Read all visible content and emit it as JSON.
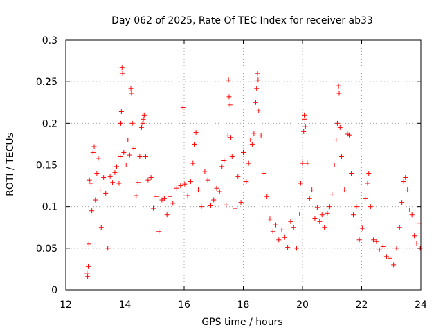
{
  "chart_data": {
    "type": "scatter",
    "title": "Day 062 of 2025, Rate Of TEC Index for receiver ab33",
    "xlabel": "GPS time / hours",
    "ylabel": "ROTI / TECUs",
    "xlim": [
      12,
      24
    ],
    "ylim": [
      0,
      0.3
    ],
    "x_ticks": [
      12,
      14,
      16,
      18,
      20,
      22,
      24
    ],
    "y_ticks": [
      0,
      0.05,
      0.1,
      0.15,
      0.2,
      0.25,
      0.3
    ],
    "x_tick_labels": [
      "12",
      "14",
      "16",
      "18",
      "20",
      "22",
      "24"
    ],
    "y_tick_labels": [
      "0",
      "0.05",
      "0.1",
      "0.15",
      "0.2",
      "0.25",
      "0.3"
    ],
    "grid": true,
    "marker": "plus",
    "marker_color": "#ff0000",
    "grid_color": "#a0a0a0",
    "series": [
      {
        "name": "ROTI",
        "points": [
          [
            12.72,
            0.02
          ],
          [
            12.74,
            0.016
          ],
          [
            12.76,
            0.028
          ],
          [
            12.78,
            0.055
          ],
          [
            12.8,
            0.132
          ],
          [
            12.85,
            0.128
          ],
          [
            12.88,
            0.095
          ],
          [
            12.92,
            0.165
          ],
          [
            12.96,
            0.172
          ],
          [
            13.0,
            0.108
          ],
          [
            13.05,
            0.14
          ],
          [
            13.1,
            0.158
          ],
          [
            13.16,
            0.12
          ],
          [
            13.2,
            0.075
          ],
          [
            13.28,
            0.135
          ],
          [
            13.35,
            0.116
          ],
          [
            13.42,
            0.05
          ],
          [
            13.5,
            0.136
          ],
          [
            13.58,
            0.129
          ],
          [
            13.66,
            0.141
          ],
          [
            13.72,
            0.148
          ],
          [
            13.8,
            0.128
          ],
          [
            13.84,
            0.16
          ],
          [
            13.86,
            0.2
          ],
          [
            13.88,
            0.214
          ],
          [
            13.9,
            0.267
          ],
          [
            13.92,
            0.26
          ],
          [
            13.96,
            0.165
          ],
          [
            14.04,
            0.15
          ],
          [
            14.1,
            0.18
          ],
          [
            14.16,
            0.162
          ],
          [
            14.2,
            0.242
          ],
          [
            14.22,
            0.236
          ],
          [
            14.25,
            0.2
          ],
          [
            14.3,
            0.17
          ],
          [
            14.38,
            0.113
          ],
          [
            14.44,
            0.129
          ],
          [
            14.5,
            0.16
          ],
          [
            14.56,
            0.195
          ],
          [
            14.6,
            0.2
          ],
          [
            14.62,
            0.205
          ],
          [
            14.65,
            0.21
          ],
          [
            14.7,
            0.16
          ],
          [
            14.78,
            0.132
          ],
          [
            14.88,
            0.135
          ],
          [
            14.96,
            0.098
          ],
          [
            15.05,
            0.112
          ],
          [
            15.15,
            0.07
          ],
          [
            15.25,
            0.108
          ],
          [
            15.33,
            0.11
          ],
          [
            15.42,
            0.09
          ],
          [
            15.52,
            0.112
          ],
          [
            15.62,
            0.104
          ],
          [
            15.75,
            0.122
          ],
          [
            15.88,
            0.125
          ],
          [
            15.96,
            0.219
          ],
          [
            16.02,
            0.127
          ],
          [
            16.12,
            0.113
          ],
          [
            16.22,
            0.13
          ],
          [
            16.3,
            0.152
          ],
          [
            16.34,
            0.175
          ],
          [
            16.4,
            0.189
          ],
          [
            16.48,
            0.12
          ],
          [
            16.58,
            0.1
          ],
          [
            16.7,
            0.142
          ],
          [
            16.8,
            0.132
          ],
          [
            16.9,
            0.101
          ],
          [
            17.0,
            0.108
          ],
          [
            17.1,
            0.122
          ],
          [
            17.2,
            0.118
          ],
          [
            17.28,
            0.148
          ],
          [
            17.35,
            0.155
          ],
          [
            17.42,
            0.102
          ],
          [
            17.48,
            0.185
          ],
          [
            17.5,
            0.252
          ],
          [
            17.52,
            0.232
          ],
          [
            17.55,
            0.222
          ],
          [
            17.58,
            0.183
          ],
          [
            17.62,
            0.16
          ],
          [
            17.72,
            0.098
          ],
          [
            17.82,
            0.136
          ],
          [
            17.92,
            0.105
          ],
          [
            18.0,
            0.165
          ],
          [
            18.1,
            0.13
          ],
          [
            18.18,
            0.152
          ],
          [
            18.24,
            0.18
          ],
          [
            18.3,
            0.175
          ],
          [
            18.36,
            0.188
          ],
          [
            18.42,
            0.225
          ],
          [
            18.45,
            0.242
          ],
          [
            18.48,
            0.26
          ],
          [
            18.5,
            0.252
          ],
          [
            18.52,
            0.215
          ],
          [
            18.6,
            0.185
          ],
          [
            18.7,
            0.14
          ],
          [
            18.8,
            0.112
          ],
          [
            18.9,
            0.085
          ],
          [
            19.0,
            0.07
          ],
          [
            19.1,
            0.078
          ],
          [
            19.2,
            0.06
          ],
          [
            19.3,
            0.072
          ],
          [
            19.4,
            0.063
          ],
          [
            19.5,
            0.051
          ],
          [
            19.6,
            0.082
          ],
          [
            19.7,
            0.075
          ],
          [
            19.8,
            0.05
          ],
          [
            19.9,
            0.091
          ],
          [
            19.94,
            0.128
          ],
          [
            20.0,
            0.152
          ],
          [
            20.04,
            0.19
          ],
          [
            20.06,
            0.21
          ],
          [
            20.08,
            0.205
          ],
          [
            20.1,
            0.196
          ],
          [
            20.16,
            0.152
          ],
          [
            20.24,
            0.11
          ],
          [
            20.32,
            0.12
          ],
          [
            20.42,
            0.086
          ],
          [
            20.5,
            0.099
          ],
          [
            20.58,
            0.082
          ],
          [
            20.66,
            0.09
          ],
          [
            20.74,
            0.075
          ],
          [
            20.84,
            0.092
          ],
          [
            20.92,
            0.1
          ],
          [
            21.0,
            0.115
          ],
          [
            21.08,
            0.15
          ],
          [
            21.14,
            0.18
          ],
          [
            21.18,
            0.2
          ],
          [
            21.22,
            0.245
          ],
          [
            21.24,
            0.236
          ],
          [
            21.27,
            0.195
          ],
          [
            21.32,
            0.16
          ],
          [
            21.42,
            0.12
          ],
          [
            21.52,
            0.187
          ],
          [
            21.58,
            0.186
          ],
          [
            21.65,
            0.14
          ],
          [
            21.72,
            0.09
          ],
          [
            21.82,
            0.1
          ],
          [
            21.92,
            0.06
          ],
          [
            22.02,
            0.074
          ],
          [
            22.12,
            0.11
          ],
          [
            22.2,
            0.128
          ],
          [
            22.24,
            0.14
          ],
          [
            22.3,
            0.1
          ],
          [
            22.4,
            0.06
          ],
          [
            22.5,
            0.058
          ],
          [
            22.6,
            0.048
          ],
          [
            22.72,
            0.052
          ],
          [
            22.84,
            0.04
          ],
          [
            22.96,
            0.038
          ],
          [
            23.08,
            0.03
          ],
          [
            23.18,
            0.05
          ],
          [
            23.28,
            0.075
          ],
          [
            23.36,
            0.105
          ],
          [
            23.42,
            0.13
          ],
          [
            23.48,
            0.135
          ],
          [
            23.55,
            0.12
          ],
          [
            23.62,
            0.096
          ],
          [
            23.7,
            0.09
          ],
          [
            23.78,
            0.065
          ],
          [
            23.86,
            0.056
          ],
          [
            23.94,
            0.08
          ],
          [
            23.98,
            0.05
          ]
        ]
      }
    ]
  }
}
